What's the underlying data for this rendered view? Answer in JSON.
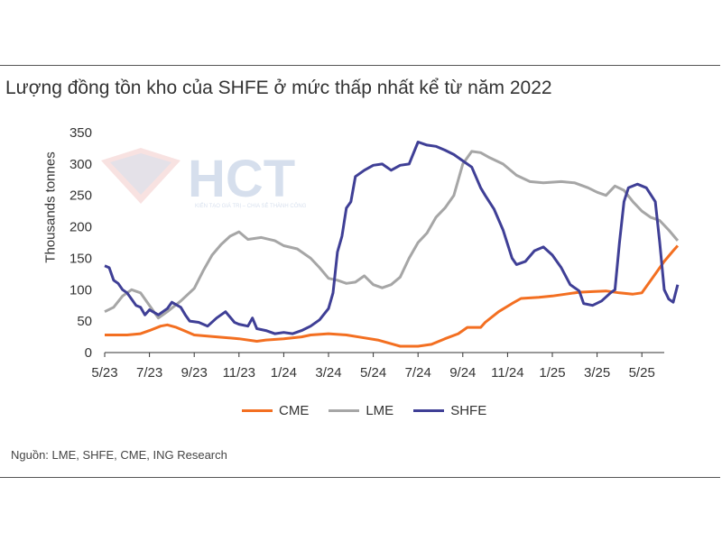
{
  "chart_data": {
    "type": "line",
    "title": "Lượng đồng tồn kho của SHFE ở mức thấp nhất kể từ năm 2022",
    "ylabel": "Thousands tonnes",
    "xlabel": "",
    "ylim": [
      0,
      350
    ],
    "yticks": [
      0,
      50,
      100,
      150,
      200,
      250,
      300,
      350
    ],
    "x_tick_labels": [
      "5/23",
      "7/23",
      "9/23",
      "11/23",
      "1/24",
      "3/24",
      "5/24",
      "7/24",
      "9/24",
      "11/24",
      "1/25",
      "3/25",
      "5/25"
    ],
    "x_range_months": [
      0,
      25
    ],
    "grid": false,
    "legend_position": "bottom",
    "series": [
      {
        "name": "CME",
        "color": "#f36f21",
        "points": [
          [
            0,
            28
          ],
          [
            1,
            28
          ],
          [
            1.6,
            30
          ],
          [
            2,
            35
          ],
          [
            2.5,
            42
          ],
          [
            2.8,
            44
          ],
          [
            3.2,
            40
          ],
          [
            3.6,
            34
          ],
          [
            4,
            28
          ],
          [
            5,
            25
          ],
          [
            6,
            22
          ],
          [
            6.8,
            18
          ],
          [
            7.2,
            20
          ],
          [
            8,
            22
          ],
          [
            8.8,
            25
          ],
          [
            9.2,
            28
          ],
          [
            10,
            30
          ],
          [
            10.8,
            28
          ],
          [
            11.5,
            24
          ],
          [
            12.2,
            20
          ],
          [
            12.8,
            14
          ],
          [
            13.2,
            10
          ],
          [
            14,
            10
          ],
          [
            14.6,
            13
          ],
          [
            15.2,
            22
          ],
          [
            15.8,
            30
          ],
          [
            16.2,
            40
          ],
          [
            16.8,
            40
          ],
          [
            17,
            48
          ],
          [
            17.6,
            65
          ],
          [
            18.2,
            78
          ],
          [
            18.6,
            86
          ],
          [
            19.4,
            88
          ],
          [
            20,
            90
          ],
          [
            20.6,
            93
          ],
          [
            21.2,
            96
          ],
          [
            21.8,
            97
          ],
          [
            22.4,
            98
          ],
          [
            23,
            95
          ],
          [
            23.6,
            93
          ],
          [
            24,
            95
          ],
          [
            24.2,
            105
          ],
          [
            24.6,
            125
          ],
          [
            25,
            145
          ],
          [
            25.4,
            162
          ],
          [
            25.6,
            170
          ]
        ]
      },
      {
        "name": "LME",
        "color": "#a6a6a6",
        "points": [
          [
            0,
            65
          ],
          [
            0.4,
            72
          ],
          [
            0.8,
            90
          ],
          [
            1.2,
            100
          ],
          [
            1.6,
            95
          ],
          [
            2,
            75
          ],
          [
            2.4,
            55
          ],
          [
            2.8,
            65
          ],
          [
            3.4,
            82
          ],
          [
            4,
            102
          ],
          [
            4.4,
            130
          ],
          [
            4.8,
            155
          ],
          [
            5.2,
            172
          ],
          [
            5.6,
            185
          ],
          [
            6,
            192
          ],
          [
            6.4,
            180
          ],
          [
            7,
            183
          ],
          [
            7.6,
            178
          ],
          [
            8,
            170
          ],
          [
            8.6,
            165
          ],
          [
            9.2,
            150
          ],
          [
            9.6,
            135
          ],
          [
            10,
            118
          ],
          [
            10.4,
            115
          ],
          [
            10.8,
            110
          ],
          [
            11.2,
            112
          ],
          [
            11.6,
            122
          ],
          [
            12,
            108
          ],
          [
            12.4,
            103
          ],
          [
            12.8,
            108
          ],
          [
            13.2,
            120
          ],
          [
            13.6,
            150
          ],
          [
            14,
            175
          ],
          [
            14.4,
            190
          ],
          [
            14.8,
            215
          ],
          [
            15.2,
            230
          ],
          [
            15.6,
            250
          ],
          [
            16,
            300
          ],
          [
            16.4,
            320
          ],
          [
            16.8,
            318
          ],
          [
            17.2,
            310
          ],
          [
            17.8,
            300
          ],
          [
            18.4,
            282
          ],
          [
            19,
            272
          ],
          [
            19.6,
            270
          ],
          [
            20.4,
            272
          ],
          [
            21,
            270
          ],
          [
            21.6,
            262
          ],
          [
            22,
            255
          ],
          [
            22.4,
            250
          ],
          [
            22.8,
            265
          ],
          [
            23.2,
            258
          ],
          [
            23.6,
            240
          ],
          [
            24,
            225
          ],
          [
            24.4,
            215
          ],
          [
            24.8,
            210
          ],
          [
            25.2,
            195
          ],
          [
            25.6,
            178
          ]
        ]
      },
      {
        "name": "SHFE",
        "color": "#3f3f96",
        "points": [
          [
            0,
            138
          ],
          [
            0.2,
            135
          ],
          [
            0.4,
            115
          ],
          [
            0.6,
            110
          ],
          [
            0.8,
            100
          ],
          [
            1,
            95
          ],
          [
            1.2,
            85
          ],
          [
            1.4,
            75
          ],
          [
            1.6,
            72
          ],
          [
            1.8,
            60
          ],
          [
            2,
            68
          ],
          [
            2.4,
            60
          ],
          [
            2.8,
            70
          ],
          [
            3,
            80
          ],
          [
            3.4,
            72
          ],
          [
            3.6,
            60
          ],
          [
            3.8,
            50
          ],
          [
            4.2,
            48
          ],
          [
            4.6,
            42
          ],
          [
            5,
            55
          ],
          [
            5.4,
            65
          ],
          [
            5.8,
            48
          ],
          [
            6,
            45
          ],
          [
            6.4,
            42
          ],
          [
            6.6,
            55
          ],
          [
            6.8,
            38
          ],
          [
            7.2,
            35
          ],
          [
            7.6,
            30
          ],
          [
            8,
            32
          ],
          [
            8.4,
            30
          ],
          [
            8.8,
            35
          ],
          [
            9.2,
            42
          ],
          [
            9.6,
            52
          ],
          [
            10,
            70
          ],
          [
            10.2,
            95
          ],
          [
            10.4,
            160
          ],
          [
            10.6,
            185
          ],
          [
            10.8,
            230
          ],
          [
            11,
            240
          ],
          [
            11.2,
            280
          ],
          [
            11.6,
            290
          ],
          [
            12,
            298
          ],
          [
            12.4,
            300
          ],
          [
            12.8,
            290
          ],
          [
            13.2,
            298
          ],
          [
            13.6,
            300
          ],
          [
            14,
            335
          ],
          [
            14.4,
            330
          ],
          [
            14.8,
            328
          ],
          [
            15.2,
            322
          ],
          [
            15.6,
            315
          ],
          [
            16,
            305
          ],
          [
            16.4,
            295
          ],
          [
            16.8,
            262
          ],
          [
            17,
            250
          ],
          [
            17.4,
            228
          ],
          [
            17.8,
            195
          ],
          [
            18.2,
            150
          ],
          [
            18.4,
            140
          ],
          [
            18.8,
            145
          ],
          [
            19.2,
            162
          ],
          [
            19.6,
            168
          ],
          [
            20,
            155
          ],
          [
            20.4,
            135
          ],
          [
            20.8,
            108
          ],
          [
            21.2,
            98
          ],
          [
            21.4,
            78
          ],
          [
            21.8,
            75
          ],
          [
            22.2,
            82
          ],
          [
            22.6,
            95
          ],
          [
            22.8,
            100
          ],
          [
            23,
            175
          ],
          [
            23.2,
            240
          ],
          [
            23.4,
            262
          ],
          [
            23.8,
            268
          ],
          [
            24.2,
            262
          ],
          [
            24.6,
            240
          ],
          [
            24.8,
            175
          ],
          [
            25,
            100
          ],
          [
            25.2,
            85
          ],
          [
            25.4,
            80
          ],
          [
            25.6,
            108
          ]
        ]
      }
    ]
  },
  "legend": {
    "items": [
      "CME",
      "LME",
      "SHFE"
    ]
  },
  "source": "Nguồn: LME, SHFE, CME, ING Research",
  "watermark": {
    "logo": "HCT",
    "tagline": "KIẾN TẠO GIÁ TRỊ – CHIA SẺ THÀNH CÔNG"
  }
}
